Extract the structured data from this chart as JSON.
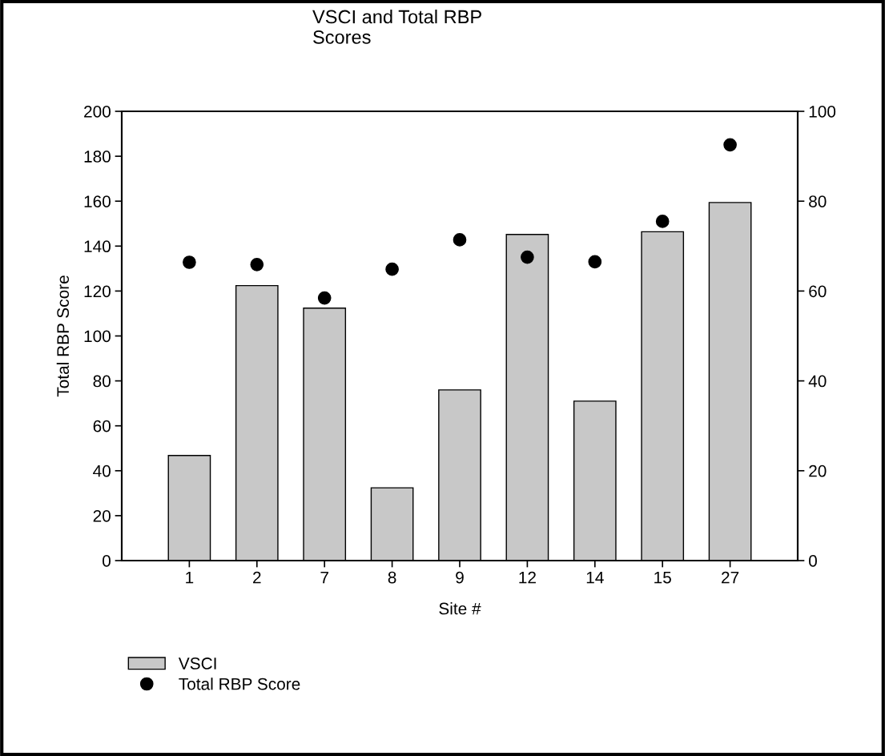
{
  "chart_data": {
    "type": "bar",
    "title": "VSCI and Total RBP\nScores",
    "xlabel": "Site #",
    "ylabel": "Total RBP Score",
    "categories": [
      "1",
      "2",
      "7",
      "8",
      "9",
      "12",
      "14",
      "15",
      "27"
    ],
    "series": [
      {
        "name": "VSCI",
        "axis": "y2",
        "color": "#c8c8c8",
        "values": [
          23.4,
          61.2,
          56.2,
          16.2,
          38.0,
          72.6,
          35.5,
          73.2,
          79.7
        ]
      },
      {
        "name": "Total RBP Score",
        "type": "scatter",
        "color": "#000000",
        "values": [
          132.8,
          131.8,
          116.9,
          129.7,
          142.8,
          135.1,
          133.0,
          151.0,
          185.1
        ]
      }
    ],
    "ylim": [
      0,
      200
    ],
    "yticks": [
      0,
      20,
      40,
      60,
      80,
      100,
      120,
      140,
      160,
      180,
      200
    ],
    "y2lim": [
      0,
      100
    ],
    "y2ticks": [
      0,
      20,
      40,
      60,
      80,
      100
    ],
    "marker": "circle",
    "grid": false,
    "legend": "bottom left"
  }
}
